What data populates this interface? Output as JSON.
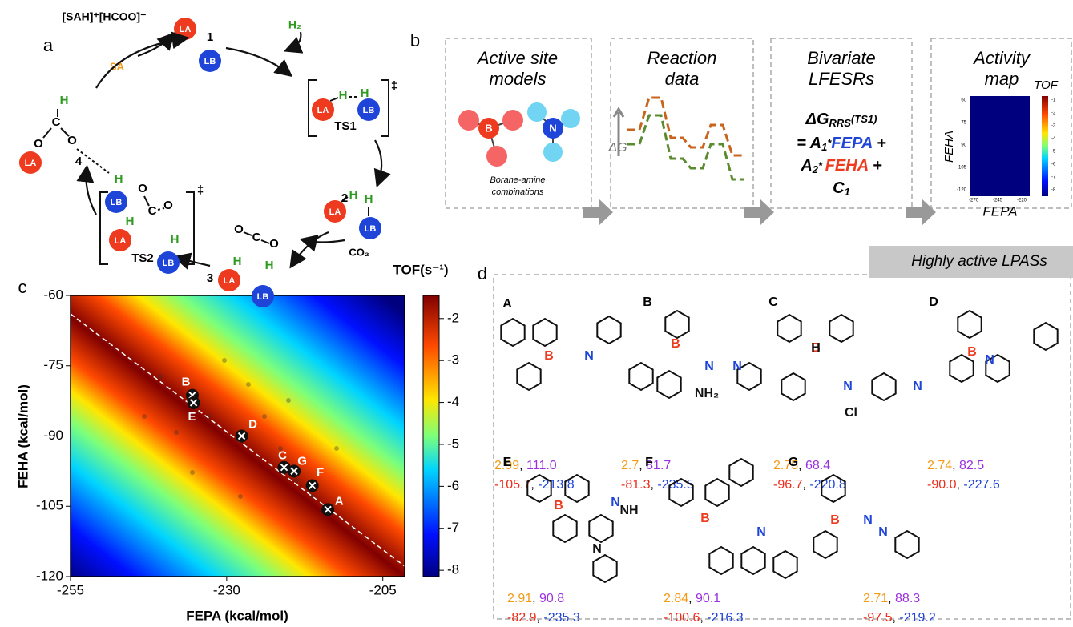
{
  "panel_labels": {
    "a": "a",
    "b": "b",
    "c": "c",
    "d": "d"
  },
  "cycle": {
    "acid": "LA",
    "base": "LB",
    "hydrogen": "H",
    "oxygen": "O",
    "carbon": "C",
    "ts_mark": "‡",
    "product": "[SAH]⁺[HCOO]⁻",
    "sa": "SA",
    "h2": "H₂",
    "co2": "CO₂",
    "species": {
      "s1": "1",
      "ts1": "TS1",
      "s2": "2",
      "s3": "3",
      "ts2": "TS2",
      "s4": "4"
    }
  },
  "workflow": {
    "steps": [
      {
        "title_1": "Active site",
        "title_2": "models",
        "note_1": "Borane-amine",
        "note_2": "combinations",
        "boron": "B",
        "nitrogen": "N"
      },
      {
        "title_1": "Reaction",
        "title_2": "data",
        "axis": "ΔG"
      },
      {
        "title_1": "Bivariate",
        "title_2": "LFESRs"
      },
      {
        "title_1": "Activity",
        "title_2": "map",
        "colorbar": "TOF",
        "y_label": "FEHA",
        "x_label": "FEPA",
        "yticks": [
          "60",
          "75",
          "90",
          "105",
          "-120"
        ],
        "xticks": [
          "-270",
          "-245",
          "-220"
        ],
        "cticks": [
          "-1",
          "-2",
          "-3",
          "-4",
          "-5",
          "-6",
          "-7",
          "-8"
        ]
      }
    ],
    "equation": {
      "dg": "ΔG",
      "sub": "RRS",
      "ts": "(TS1)",
      "eq": "= A",
      "a1": "1",
      "star1": "*",
      "fepa": "FEPA",
      "plus1": " +",
      "a2": "A",
      "a2sub": "2",
      "star2": "* ",
      "feha": "FEHA",
      "plus2": " +",
      "c": "C",
      "csub": "1"
    }
  },
  "chart_data": {
    "type": "scatter",
    "x_label": "FEPA (kcal/mol)",
    "y_label": "FEHA (kcal/mol)",
    "colorbar_label": "TOF(s⁻¹)",
    "xlim": [
      -255,
      -201.5
    ],
    "ylim": [
      -120,
      -60
    ],
    "xticks": [
      -255,
      -230,
      -205
    ],
    "yticks": [
      -60,
      -75,
      -90,
      -105,
      -120
    ],
    "clim": [
      -8.15,
      -1.45
    ],
    "cticks": [
      -2,
      -3,
      -4,
      -5,
      -6,
      -7,
      -8
    ],
    "labels": [
      "B",
      "E",
      "D",
      "C",
      "G",
      "F",
      "A"
    ],
    "x": [
      -235.5,
      -235.3,
      -227.6,
      -220.8,
      -219.2,
      -216.3,
      -213.8
    ],
    "y": [
      -81.3,
      -82.9,
      -90.0,
      -96.7,
      -97.5,
      -100.6,
      -105.7
    ],
    "color": "#ffffff"
  },
  "lpass": {
    "title": "Highly active LPASs",
    "items": [
      {
        "label": "A",
        "v1": "2.99",
        "v2": "111.0",
        "feha": "-105.7",
        "fepa": "-213.8",
        "atoms": [
          "B",
          "N"
        ]
      },
      {
        "label": "B",
        "v1": "2.7",
        "v2": "81.7",
        "feha": "-81.3",
        "fepa": "-235.5",
        "atoms": [
          "B",
          "N",
          "N",
          "NH₂"
        ]
      },
      {
        "label": "C",
        "v1": "2.75",
        "v2": "68.4",
        "feha": "-96.7",
        "fepa": "-220.8",
        "atoms": [
          "B",
          "N",
          "N",
          "Cl",
          "H"
        ]
      },
      {
        "label": "D",
        "v1": "2.74",
        "v2": "82.5",
        "feha": "-90.0",
        "fepa": "-227.6",
        "atoms": [
          "B",
          "N"
        ]
      },
      {
        "label": "E",
        "v1": "2.91",
        "v2": "90.8",
        "feha": "-82.9",
        "fepa": "-235.3",
        "atoms": [
          "B",
          "N",
          "NH",
          "N"
        ]
      },
      {
        "label": "F",
        "v1": "2.84",
        "v2": "90.1",
        "feha": "-100.6",
        "fepa": "-216.3",
        "atoms": [
          "B",
          "N"
        ]
      },
      {
        "label": "G",
        "v1": "2.71",
        "v2": "88.3",
        "feha": "-97.5",
        "fepa": "-219.2",
        "atoms": [
          "B",
          "N",
          "N"
        ]
      }
    ]
  }
}
